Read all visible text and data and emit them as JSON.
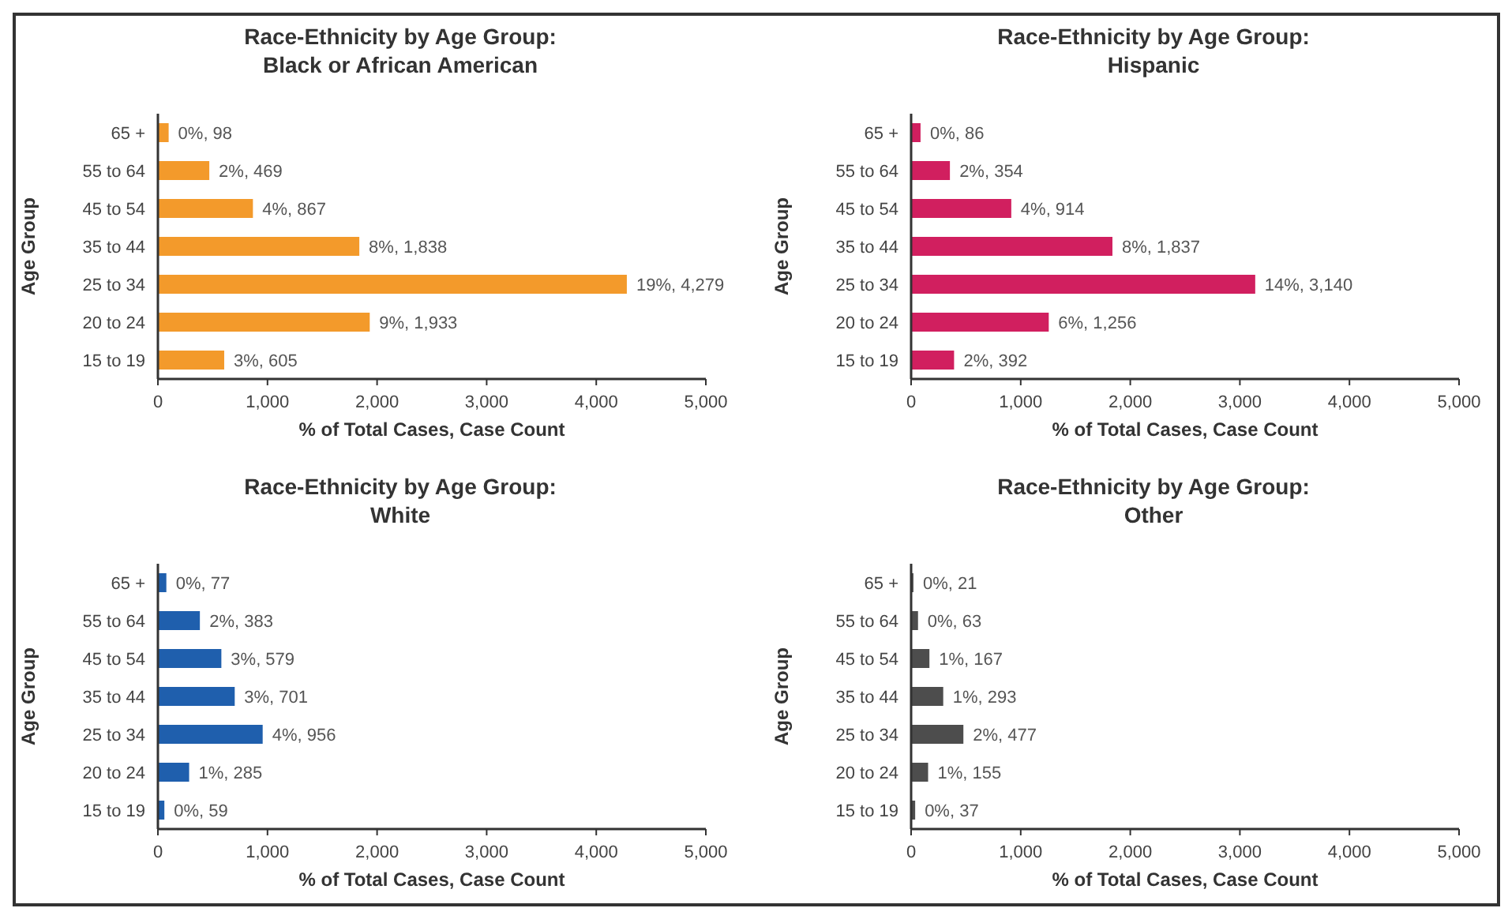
{
  "chart_data": [
    {
      "type": "bar",
      "orientation": "horizontal",
      "title": "Race-Ethnicity by Age Group:",
      "subtitle": "Black or African American",
      "xlabel": "% of Total Cases, Case Count",
      "ylabel": "Age Group",
      "categories": [
        "65 +",
        "55 to 64",
        "45 to 54",
        "35 to 44",
        "25 to 34",
        "20 to 24",
        "15 to 19"
      ],
      "values": [
        98,
        469,
        867,
        1838,
        4279,
        1933,
        605
      ],
      "value_labels": [
        "0%, 98",
        "2%, 469",
        "4%, 867",
        "8%, 1,838",
        "19%, 4,279",
        "9%, 1,933",
        "3%, 605"
      ],
      "color": "#f39a2b",
      "xlim": [
        0,
        5000
      ],
      "xticks": [
        {
          "value": 0,
          "label": "0"
        },
        {
          "value": 1000,
          "label": "1,000"
        },
        {
          "value": 2000,
          "label": "2,000"
        },
        {
          "value": 3000,
          "label": "3,000"
        },
        {
          "value": 4000,
          "label": "4,000"
        },
        {
          "value": 5000,
          "label": "5,000"
        }
      ],
      "grid": false
    },
    {
      "type": "bar",
      "orientation": "horizontal",
      "title": "Race-Ethnicity by Age Group:",
      "subtitle": "Hispanic",
      "xlabel": "% of Total Cases, Case Count",
      "ylabel": "Age Group",
      "categories": [
        "65 +",
        "55 to 64",
        "45 to 54",
        "35 to 44",
        "25 to 34",
        "20 to 24",
        "15 to 19"
      ],
      "values": [
        86,
        354,
        914,
        1837,
        3140,
        1256,
        392
      ],
      "value_labels": [
        "0%, 86",
        "2%, 354",
        "4%, 914",
        "8%, 1,837",
        "14%, 3,140",
        "6%, 1,256",
        "2%, 392"
      ],
      "color": "#d11f5f",
      "xlim": [
        0,
        5000
      ],
      "xticks": [
        {
          "value": 0,
          "label": "0"
        },
        {
          "value": 1000,
          "label": "1,000"
        },
        {
          "value": 2000,
          "label": "2,000"
        },
        {
          "value": 3000,
          "label": "3,000"
        },
        {
          "value": 4000,
          "label": "4,000"
        },
        {
          "value": 5000,
          "label": "5,000"
        }
      ],
      "grid": false
    },
    {
      "type": "bar",
      "orientation": "horizontal",
      "title": "Race-Ethnicity by Age Group:",
      "subtitle": "White",
      "xlabel": "% of Total Cases, Case Count",
      "ylabel": "Age Group",
      "categories": [
        "65 +",
        "55 to 64",
        "45 to 54",
        "35 to 44",
        "25 to 34",
        "20 to 24",
        "15 to 19"
      ],
      "values": [
        77,
        383,
        579,
        701,
        956,
        285,
        59
      ],
      "value_labels": [
        "0%, 77",
        "2%, 383",
        "3%, 579",
        "3%, 701",
        "4%, 956",
        "1%, 285",
        "0%, 59"
      ],
      "color": "#1f5fad",
      "xlim": [
        0,
        5000
      ],
      "xticks": [
        {
          "value": 0,
          "label": "0"
        },
        {
          "value": 1000,
          "label": "1,000"
        },
        {
          "value": 2000,
          "label": "2,000"
        },
        {
          "value": 3000,
          "label": "3,000"
        },
        {
          "value": 4000,
          "label": "4,000"
        },
        {
          "value": 5000,
          "label": "5,000"
        }
      ],
      "grid": false
    },
    {
      "type": "bar",
      "orientation": "horizontal",
      "title": "Race-Ethnicity by Age Group:",
      "subtitle": "Other",
      "xlabel": "% of Total Cases, Case Count",
      "ylabel": "Age Group",
      "categories": [
        "65 +",
        "55 to 64",
        "45 to 54",
        "35 to 44",
        "25 to 34",
        "20 to 24",
        "15 to 19"
      ],
      "values": [
        21,
        63,
        167,
        293,
        477,
        155,
        37
      ],
      "value_labels": [
        "0%, 21",
        "0%, 63",
        "1%, 167",
        "1%, 293",
        "2%, 477",
        "1%, 155",
        "0%, 37"
      ],
      "color": "#4d4d4d",
      "xlim": [
        0,
        5000
      ],
      "xticks": [
        {
          "value": 0,
          "label": "0"
        },
        {
          "value": 1000,
          "label": "1,000"
        },
        {
          "value": 2000,
          "label": "2,000"
        },
        {
          "value": 3000,
          "label": "3,000"
        },
        {
          "value": 4000,
          "label": "4,000"
        },
        {
          "value": 5000,
          "label": "5,000"
        }
      ],
      "grid": false
    }
  ]
}
